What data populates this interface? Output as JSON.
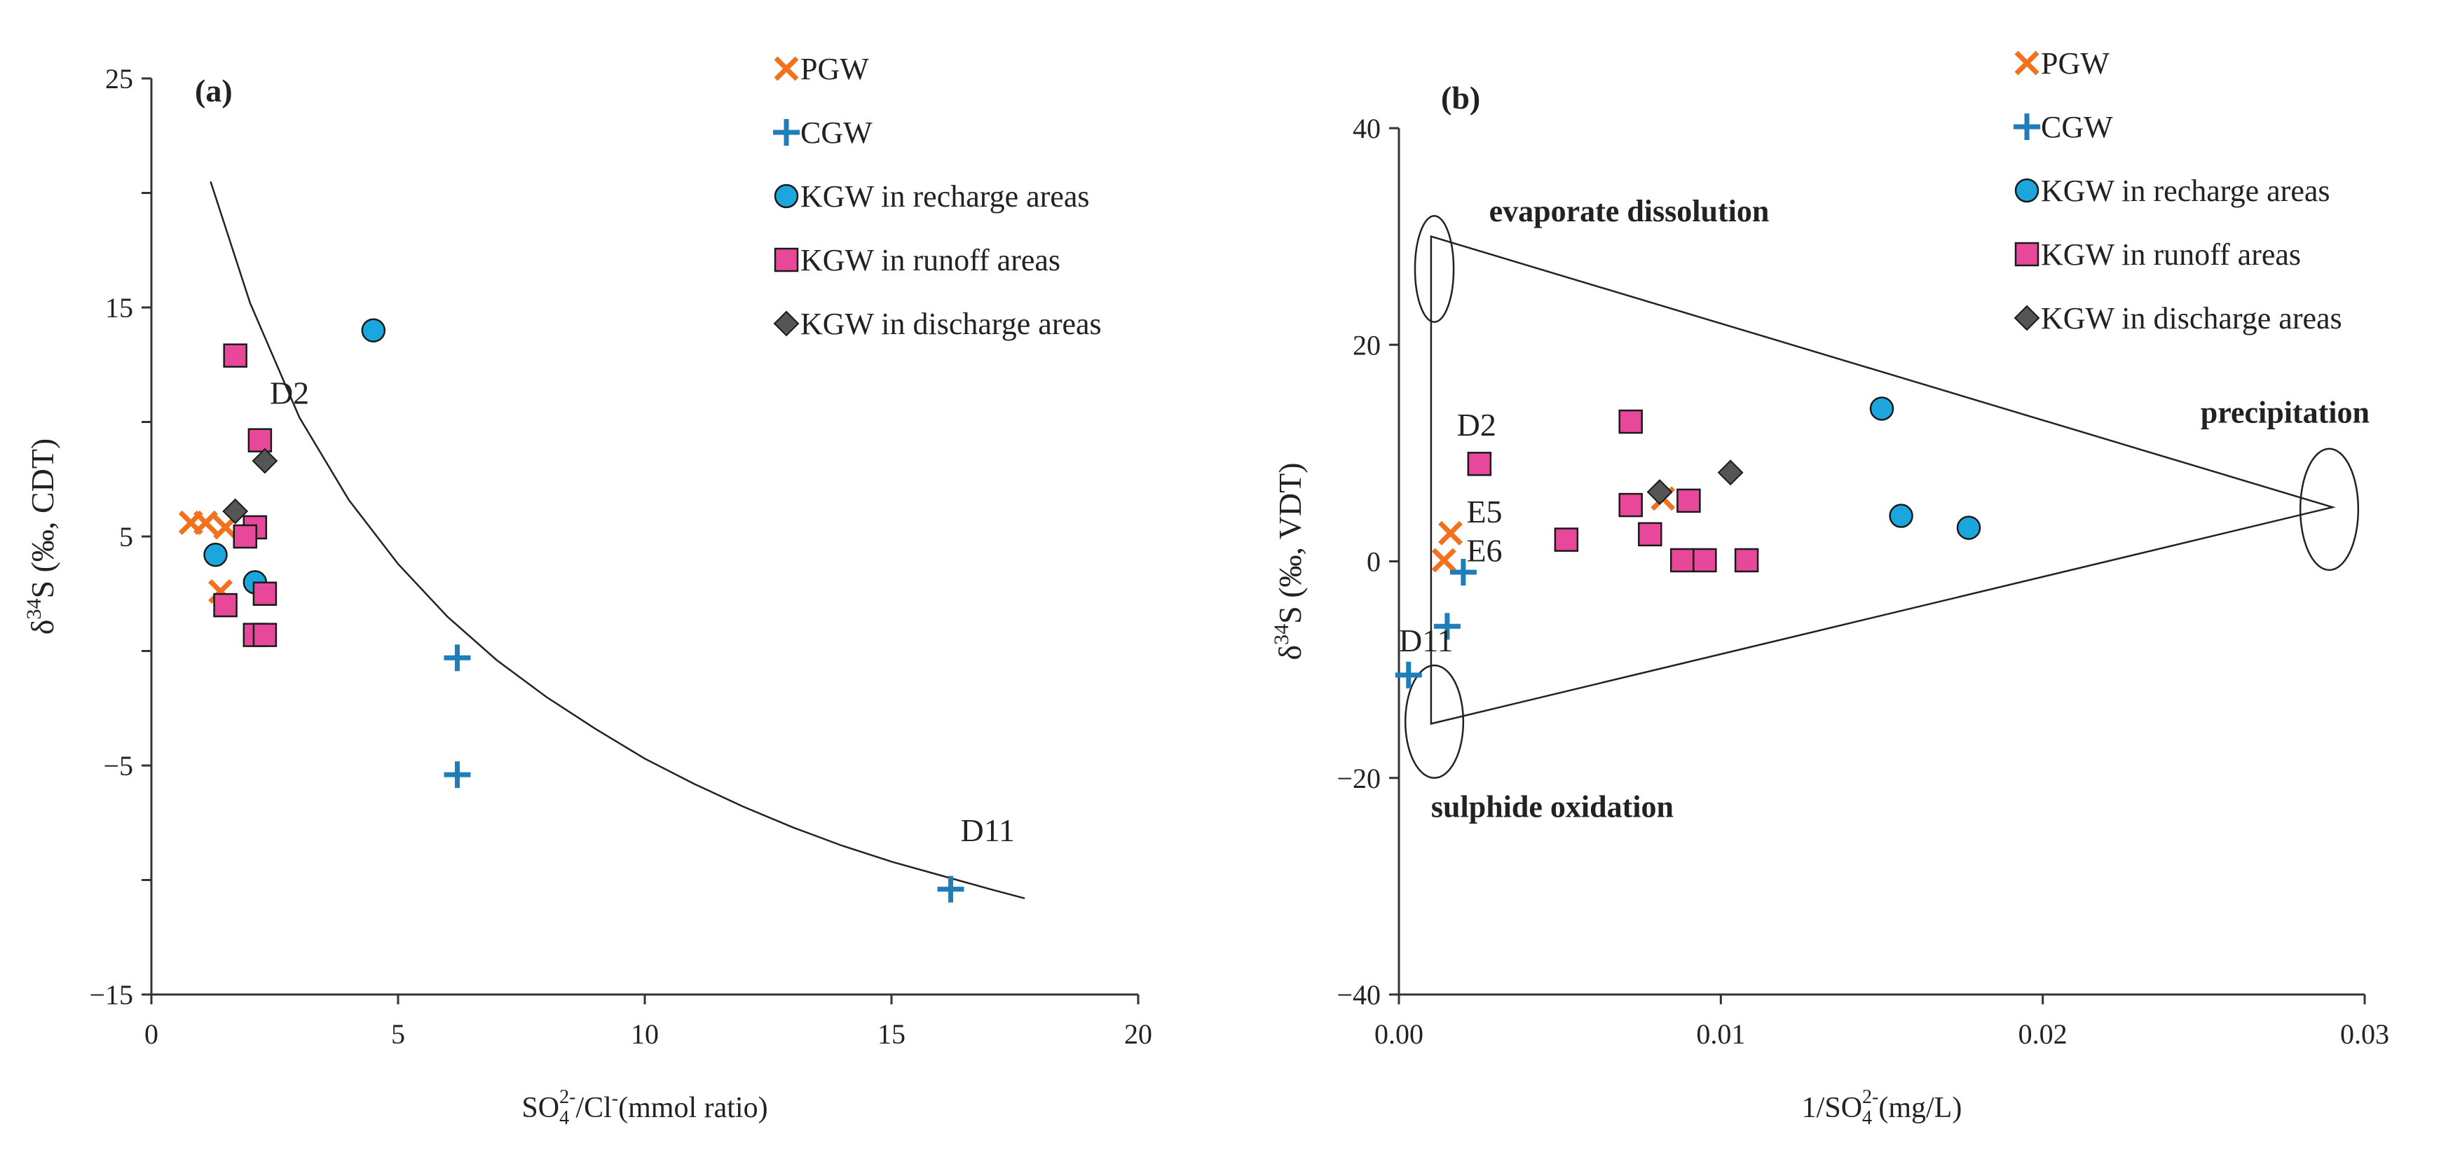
{
  "figure": {
    "colors": {
      "pgw": "#F2711C",
      "cgw": "#1F7DBA",
      "recharge_fill": "#1BA6DE",
      "runoff_fill": "#E8489A",
      "discharge_fill": "#555555",
      "axis": "#333333"
    },
    "legend": [
      {
        "key": "pgw",
        "label": "PGW",
        "marker": "x-icon"
      },
      {
        "key": "cgw",
        "label": "CGW",
        "marker": "plus-icon"
      },
      {
        "key": "recharge",
        "label": "KGW in recharge areas",
        "marker": "circle-icon"
      },
      {
        "key": "runoff",
        "label": "KGW in runoff areas",
        "marker": "square-icon"
      },
      {
        "key": "discharge",
        "label": "KGW in discharge areas",
        "marker": "diamond-icon"
      }
    ]
  },
  "chart_data": [
    {
      "id": "a",
      "type": "scatter",
      "panel_label": "(a)",
      "xlabel": {
        "main": "SO",
        "sub": "4",
        "sup": "2-",
        "tail": "/Cl",
        "sup2": "-",
        "rest": "(mmol ratio)"
      },
      "ylabel": {
        "prefix": "δ",
        "sup": "34",
        "rest": "S (‰, CDT)"
      },
      "xlim": [
        0,
        20
      ],
      "ylim": [
        -15,
        25
      ],
      "xticks": [
        0,
        5,
        10,
        15,
        20
      ],
      "yticks": [
        -15,
        -5,
        5,
        15,
        25
      ],
      "ytick_labels": [
        "−15",
        "−5",
        "5",
        "15",
        "25"
      ],
      "grid": false,
      "legend_position": "top-right",
      "series": [
        {
          "name": "PGW",
          "marker": "x",
          "points": [
            [
              0.8,
              5.6
            ],
            [
              1.1,
              5.6
            ],
            [
              1.4,
              2.6
            ],
            [
              1.5,
              5.4
            ]
          ]
        },
        {
          "name": "CGW",
          "marker": "plus",
          "points": [
            [
              6.2,
              -0.3
            ],
            [
              6.2,
              -5.4
            ],
            [
              16.2,
              -10.4
            ]
          ]
        },
        {
          "name": "KGW in recharge areas",
          "marker": "circle",
          "points": [
            [
              4.5,
              14.0
            ],
            [
              1.3,
              4.2
            ],
            [
              2.1,
              3.0
            ]
          ]
        },
        {
          "name": "KGW in runoff areas",
          "marker": "square",
          "points": [
            [
              1.7,
              12.9
            ],
            [
              2.2,
              9.2
            ],
            [
              2.1,
              5.4
            ],
            [
              1.9,
              5.0
            ],
            [
              1.5,
              2.0
            ],
            [
              2.3,
              2.5
            ],
            [
              2.1,
              0.7
            ],
            [
              2.3,
              0.7
            ]
          ]
        },
        {
          "name": "KGW in discharge areas",
          "marker": "diamond",
          "points": [
            [
              2.3,
              8.3
            ],
            [
              1.7,
              6.1
            ]
          ]
        }
      ],
      "curve": {
        "x": [
          1.2,
          2,
          3,
          4,
          5,
          6,
          7,
          8,
          9,
          10,
          11,
          12,
          13,
          14,
          15,
          16,
          17,
          17.7
        ],
        "y": [
          20.5,
          15.2,
          10.2,
          6.6,
          3.8,
          1.5,
          -0.4,
          -2.0,
          -3.4,
          -4.7,
          -5.8,
          -6.8,
          -7.7,
          -8.5,
          -9.2,
          -9.8,
          -10.4,
          -10.8
        ]
      },
      "annotations": [
        {
          "text": "D2",
          "x": 2.4,
          "y": 10.8
        },
        {
          "text": "D11",
          "x": 16.4,
          "y": -8.3
        }
      ]
    },
    {
      "id": "b",
      "type": "scatter",
      "panel_label": "(b)",
      "xlabel": {
        "main": "1/SO",
        "sub": "4",
        "sup": "2-",
        "rest": "(mg/L)"
      },
      "ylabel": {
        "prefix": "δ",
        "sup": "34",
        "rest": "S (‰, VDT)"
      },
      "xlim": [
        0,
        0.03
      ],
      "ylim": [
        -40,
        40
      ],
      "xticks": [
        0,
        0.01,
        0.02,
        0.03
      ],
      "xtick_labels": [
        "0.00",
        "0.01",
        "0.02",
        "0.03"
      ],
      "yticks": [
        -40,
        -20,
        0,
        20,
        40
      ],
      "ytick_labels": [
        "−40",
        "−20",
        "0",
        "20",
        "40"
      ],
      "grid": false,
      "legend_position": "top-right",
      "series": [
        {
          "name": "PGW",
          "marker": "x",
          "points": [
            [
              0.0016,
              2.6
            ],
            [
              0.0014,
              0.1
            ],
            [
              0.0082,
              5.8
            ]
          ]
        },
        {
          "name": "CGW",
          "marker": "plus",
          "points": [
            [
              0.0003,
              -10.5
            ],
            [
              0.0015,
              -6.0
            ],
            [
              0.002,
              -1.0
            ]
          ]
        },
        {
          "name": "KGW in recharge areas",
          "marker": "circle",
          "points": [
            [
              0.015,
              14.1
            ],
            [
              0.0156,
              4.2
            ],
            [
              0.0177,
              3.1
            ]
          ]
        },
        {
          "name": "KGW in runoff areas",
          "marker": "square",
          "points": [
            [
              0.0025,
              9.0
            ],
            [
              0.0052,
              2.0
            ],
            [
              0.0072,
              12.9
            ],
            [
              0.0072,
              5.2
            ],
            [
              0.0078,
              2.5
            ],
            [
              0.0088,
              0.1
            ],
            [
              0.0095,
              0.1
            ],
            [
              0.0108,
              0.1
            ],
            [
              0.009,
              5.6
            ]
          ]
        },
        {
          "name": "KGW in discharge areas",
          "marker": "diamond",
          "points": [
            [
              0.0081,
              6.4
            ],
            [
              0.0103,
              8.2
            ]
          ]
        }
      ],
      "triangle": [
        [
          0.001,
          30
        ],
        [
          0.029,
          5
        ],
        [
          0.001,
          -15
        ]
      ],
      "ellipses": [
        [
          0.0011,
          27,
          0.0006,
          4.9
        ],
        [
          0.0289,
          4.8,
          0.0009,
          5.6
        ],
        [
          0.0011,
          -14.8,
          0.0009,
          5.2
        ]
      ],
      "annotations": [
        {
          "text": "D2",
          "x": 0.0018,
          "y": 11.6
        },
        {
          "text": "E5",
          "x": 0.0021,
          "y": 3.6
        },
        {
          "text": "E6",
          "x": 0.0021,
          "y": 0.0
        },
        {
          "text": "D11",
          "x": 0.0,
          "y": -8.3
        }
      ],
      "region_labels": [
        {
          "text": "evaporate dissolution",
          "x": 0.0028,
          "y": 31.4
        },
        {
          "text": "precipitation",
          "x": 0.0249,
          "y": 12.8
        },
        {
          "text": "sulphide oxidation",
          "x": 0.001,
          "y": -23.6
        }
      ]
    }
  ]
}
